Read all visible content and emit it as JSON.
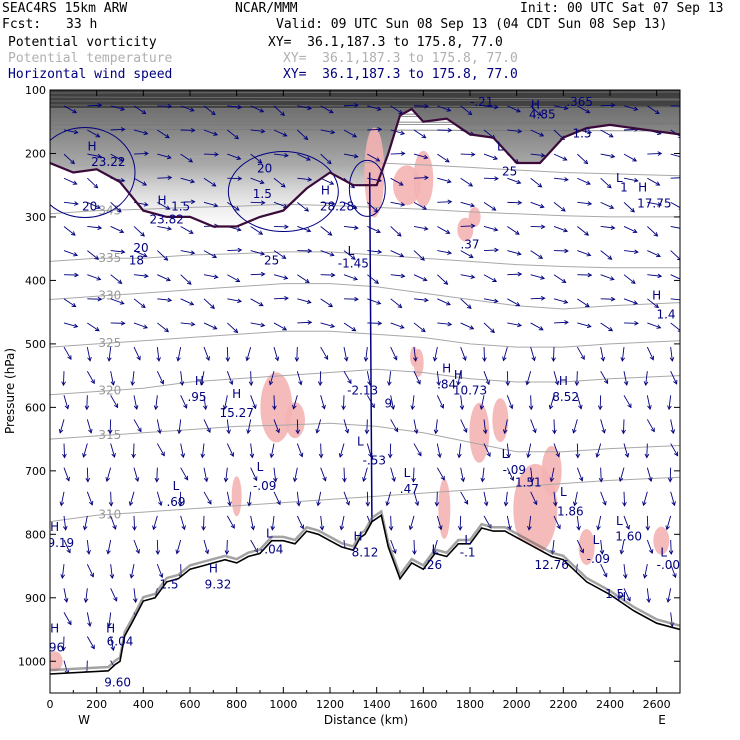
{
  "header": {
    "model": "SEAC4RS 15km ARW",
    "center": "NCAR/MMM",
    "init": "Init: 00 UTC Sat 07 Sep 13",
    "fcst_label": "Fcst:",
    "fcst_value": "33 h",
    "valid": "Valid: 09 UTC Sun 08 Sep 13 (04 CDT Sun 08 Sep 13)"
  },
  "legend": [
    {
      "name": "Potential vorticity",
      "xy": "XY=  36.1,187.3 to 175.8, 77.0",
      "color": "#000000"
    },
    {
      "name": "Potential temperature",
      "xy": "XY=  36.1,187.3 to 175.8, 77.0",
      "color": "#b0b0b0"
    },
    {
      "name": "Horizontal wind speed",
      "xy": "XY=  36.1,187.3 to 175.8, 77.0",
      "color": "#00007f"
    }
  ],
  "colors": {
    "terrain": "#000000",
    "theta": "#a8a8a8",
    "wind": "#00007f",
    "pv_fill_light": "#d0d0d0",
    "pv_fill_dark": "#303030",
    "tropopause": "#3a0a3a",
    "moisture": "#f4b4b4"
  },
  "chart_data": {
    "type": "cross-section",
    "xlabel": "Distance (km)",
    "ylabel": "Pressure (hPa)",
    "xlim": [
      0,
      2700
    ],
    "ylim": [
      1050,
      100
    ],
    "x_ticks": [
      "0",
      "200",
      "400",
      "600",
      "800",
      "1000",
      "1200",
      "1400",
      "1600",
      "1800",
      "2000",
      "2200",
      "2400",
      "2600"
    ],
    "y_ticks": [
      "100",
      "200",
      "300",
      "400",
      "500",
      "600",
      "700",
      "800",
      "900",
      "1000"
    ],
    "x_end_labels": {
      "left": "W",
      "right": "E"
    },
    "terrain": {
      "x": [
        0,
        250,
        280,
        300,
        320,
        350,
        400,
        450,
        500,
        550,
        600,
        650,
        700,
        750,
        800,
        850,
        900,
        950,
        1000,
        1050,
        1100,
        1150,
        1200,
        1250,
        1300,
        1330,
        1350,
        1380,
        1420,
        1450,
        1500,
        1550,
        1600,
        1650,
        1700,
        1750,
        1800,
        1850,
        1900,
        1950,
        2000,
        2050,
        2100,
        2150,
        2200,
        2300,
        2400,
        2500,
        2600,
        2700
      ],
      "pressure": [
        1020,
        1015,
        1005,
        1000,
        960,
        940,
        905,
        900,
        875,
        870,
        855,
        850,
        845,
        840,
        845,
        835,
        830,
        810,
        810,
        815,
        795,
        800,
        810,
        820,
        825,
        805,
        800,
        780,
        770,
        820,
        870,
        845,
        855,
        830,
        835,
        815,
        815,
        790,
        795,
        795,
        805,
        815,
        825,
        835,
        840,
        875,
        895,
        920,
        940,
        950
      ]
    },
    "theta_contours": [
      {
        "label": "310",
        "p": [
          780,
          770,
          765,
          760,
          755,
          750,
          745,
          740,
          735,
          730,
          725,
          720,
          715,
          710
        ]
      },
      {
        "label": "315",
        "p": [
          650,
          645,
          640,
          635,
          630,
          628,
          625,
          630,
          640,
          655,
          670,
          670,
          665,
          660
        ]
      },
      {
        "label": "320",
        "p": [
          580,
          575,
          570,
          560,
          555,
          550,
          545,
          540,
          545,
          555,
          560,
          560,
          555,
          550
        ]
      },
      {
        "label": "325",
        "p": [
          505,
          500,
          495,
          490,
          485,
          480,
          480,
          485,
          490,
          500,
          505,
          505,
          500,
          495
        ]
      },
      {
        "label": "330",
        "p": [
          430,
          425,
          420,
          415,
          410,
          405,
          405,
          410,
          420,
          430,
          440,
          445,
          440,
          435
        ]
      },
      {
        "label": "335",
        "p": [
          370,
          365,
          365,
          360,
          358,
          355,
          355,
          360,
          365,
          370,
          375,
          378,
          380,
          380
        ]
      },
      {
        "label": "345",
        "p": [
          295,
          290,
          288,
          285,
          283,
          280,
          282,
          285,
          288,
          292,
          295,
          298,
          300,
          300
        ]
      },
      {
        "label": "350",
        "p": [
          215,
          212,
          210,
          205,
          205,
          208,
          212,
          215,
          218,
          222,
          226,
          230,
          232,
          235
        ]
      }
    ],
    "theta_x": [
      0,
      200,
      400,
      600,
      800,
      1000,
      1200,
      1400,
      1600,
      1800,
      2000,
      2200,
      2400,
      2700
    ],
    "tropopause": {
      "x": [
        0,
        100,
        200,
        300,
        400,
        500,
        600,
        700,
        800,
        900,
        1000,
        1100,
        1200,
        1300,
        1400,
        1450,
        1500,
        1550,
        1600,
        1700,
        1800,
        1900,
        2000,
        2100,
        2200,
        2300,
        2400,
        2500,
        2600,
        2700
      ],
      "pressure": [
        215,
        230,
        225,
        245,
        290,
        300,
        300,
        315,
        315,
        300,
        290,
        255,
        230,
        250,
        250,
        200,
        140,
        130,
        150,
        145,
        170,
        175,
        215,
        215,
        175,
        160,
        155,
        160,
        165,
        170
      ]
    },
    "wind_speed_labels": [
      {
        "text": "H",
        "x": 180,
        "p": 195
      },
      {
        "text": "23.22",
        "x": 250,
        "p": 220
      },
      {
        "text": "20",
        "x": 170,
        "p": 290
      },
      {
        "text": "H",
        "x": 480,
        "p": 280
      },
      {
        "text": "23.82",
        "x": 500,
        "p": 310
      },
      {
        "text": "1.5",
        "x": 560,
        "p": 290
      },
      {
        "text": "20",
        "x": 920,
        "p": 230
      },
      {
        "text": "1.5",
        "x": 910,
        "p": 270
      },
      {
        "text": "H",
        "x": 1180,
        "p": 265
      },
      {
        "text": "28.28",
        "x": 1230,
        "p": 290
      },
      {
        "text": "20",
        "x": 390,
        "p": 355
      },
      {
        "text": "18",
        "x": 370,
        "p": 375
      },
      {
        "text": "25",
        "x": 950,
        "p": 375
      },
      {
        "text": "L",
        "x": 1290,
        "p": 360
      },
      {
        "text": "-1.45",
        "x": 1300,
        "p": 380
      },
      {
        "text": ".37",
        "x": 1800,
        "p": 350
      },
      {
        "text": "H",
        "x": 2600,
        "p": 430
      },
      {
        "text": "1.4",
        "x": 2640,
        "p": 460
      },
      {
        "text": "H",
        "x": 640,
        "p": 565
      },
      {
        "text": ".95",
        "x": 630,
        "p": 590
      },
      {
        "text": "H",
        "x": 800,
        "p": 585
      },
      {
        "text": "15.27",
        "x": 800,
        "p": 615
      },
      {
        "text": "H",
        "x": 1700,
        "p": 545
      },
      {
        "text": ".84",
        "x": 1700,
        "p": 570
      },
      {
        "text": "H",
        "x": 1750,
        "p": 555
      },
      {
        "text": "10.73",
        "x": 1800,
        "p": 580
      },
      {
        "text": "H",
        "x": 2200,
        "p": 565
      },
      {
        "text": "8.52",
        "x": 2210,
        "p": 590
      },
      {
        "text": "-2.13",
        "x": 1340,
        "p": 580
      },
      {
        "text": "9",
        "x": 1450,
        "p": 600
      },
      {
        "text": "L",
        "x": 1330,
        "p": 660
      },
      {
        "text": "-.53",
        "x": 1390,
        "p": 690
      },
      {
        "text": "L",
        "x": 1950,
        "p": 680
      },
      {
        "text": "-.09",
        "x": 1990,
        "p": 705
      },
      {
        "text": "1.51",
        "x": 2050,
        "p": 725
      },
      {
        "text": "L",
        "x": 540,
        "p": 730
      },
      {
        "text": ".69",
        "x": 540,
        "p": 755
      },
      {
        "text": "L",
        "x": 900,
        "p": 700
      },
      {
        "text": "-.09",
        "x": 920,
        "p": 730
      },
      {
        "text": "L",
        "x": 1530,
        "p": 710
      },
      {
        "text": ".47",
        "x": 1540,
        "p": 735
      },
      {
        "text": "L",
        "x": 2200,
        "p": 740
      },
      {
        "text": "1.86",
        "x": 2230,
        "p": 770
      },
      {
        "text": "L",
        "x": 2440,
        "p": 785
      },
      {
        "text": "1.60",
        "x": 2480,
        "p": 810
      },
      {
        "text": "H",
        "x": 20,
        "p": 795
      },
      {
        "text": "19.19",
        "x": 30,
        "p": 820
      },
      {
        "text": "L",
        "x": 940,
        "p": 805
      },
      {
        "text": "-.04",
        "x": 950,
        "p": 830
      },
      {
        "text": "H",
        "x": 1320,
        "p": 810
      },
      {
        "text": "8.12",
        "x": 1350,
        "p": 835
      },
      {
        "text": "L",
        "x": 1790,
        "p": 815
      },
      {
        "text": "-.1",
        "x": 1790,
        "p": 835
      },
      {
        "text": "L",
        "x": 2340,
        "p": 815
      },
      {
        "text": "-.09",
        "x": 2350,
        "p": 845
      },
      {
        "text": "L",
        "x": 2630,
        "p": 835
      },
      {
        "text": "-.00",
        "x": 2650,
        "p": 855
      },
      {
        "text": "L",
        "x": 1650,
        "p": 830
      },
      {
        "text": ".26",
        "x": 1640,
        "p": 855
      },
      {
        "text": "12.76",
        "x": 2150,
        "p": 855
      },
      {
        "text": "H",
        "x": 700,
        "p": 860
      },
      {
        "text": "9.32",
        "x": 720,
        "p": 885
      },
      {
        "text": "1.5",
        "x": 510,
        "p": 885
      },
      {
        "text": "1.5",
        "x": 2420,
        "p": 900
      },
      {
        "text": "H",
        "x": 2450,
        "p": 905
      },
      {
        "text": "H",
        "x": 260,
        "p": 955
      },
      {
        "text": "6.04",
        "x": 300,
        "p": 975
      },
      {
        "text": "H",
        "x": 20,
        "p": 955
      },
      {
        "text": ".96",
        "x": 20,
        "p": 985
      },
      {
        "text": "9.60",
        "x": 290,
        "p": 1040
      },
      {
        "text": "H",
        "x": 2080,
        "p": 130
      },
      {
        "text": "4.85",
        "x": 2110,
        "p": 145
      },
      {
        "text": "L",
        "x": 1930,
        "p": 195
      },
      {
        "text": "25",
        "x": 1970,
        "p": 235
      },
      {
        "text": "H",
        "x": 2540,
        "p": 260
      },
      {
        "text": "17.75",
        "x": 2590,
        "p": 285
      },
      {
        "text": "L",
        "x": 2440,
        "p": 245
      },
      {
        "text": "1",
        "x": 2460,
        "p": 260
      },
      {
        "text": "1.5",
        "x": 2280,
        "p": 175
      },
      {
        "text": ".365",
        "x": 2270,
        "p": 125
      },
      {
        "text": "-.21",
        "x": 1850,
        "p": 125
      }
    ]
  }
}
